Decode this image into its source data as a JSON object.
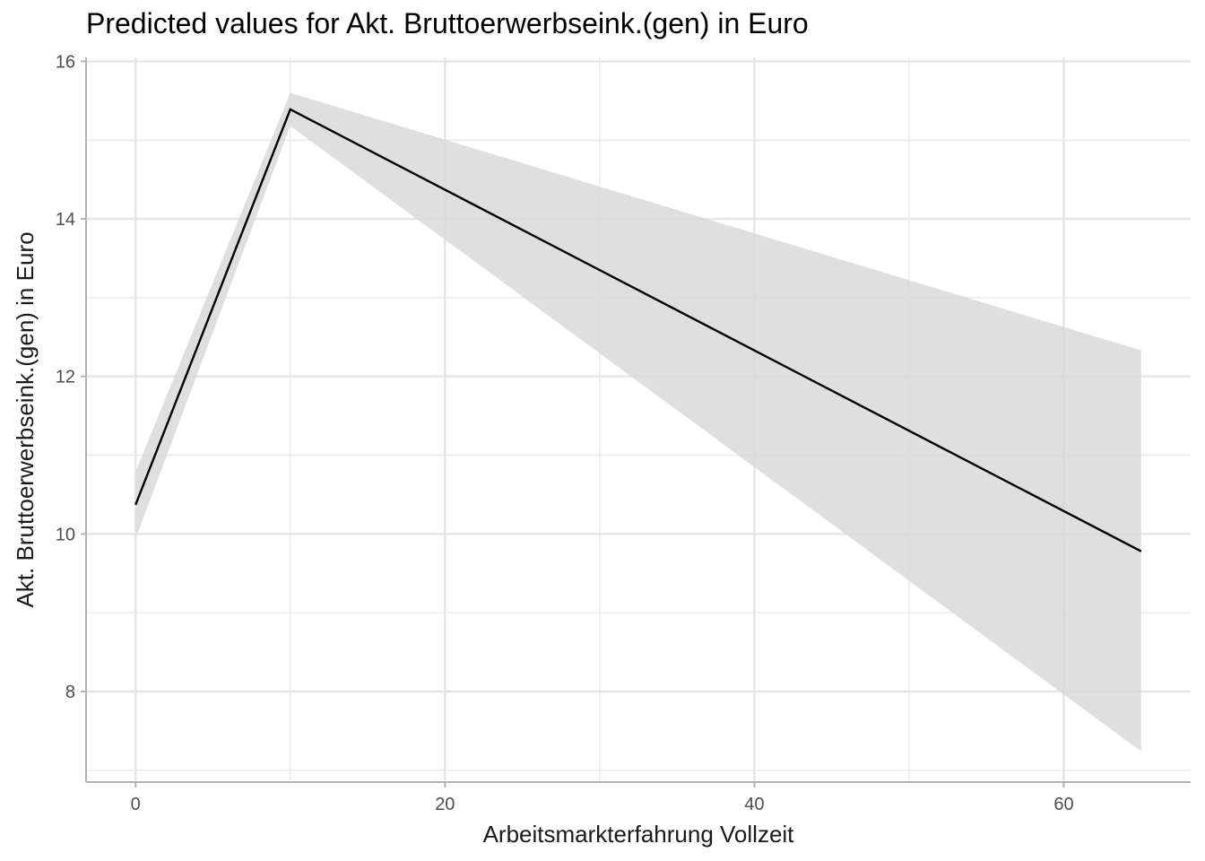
{
  "chart_data": {
    "type": "line",
    "title": "Predicted values for Akt. Bruttoerwerbseink.(gen) in Euro",
    "xlabel": "Arbeitsmarkterfahrung Vollzeit",
    "ylabel": "Akt. Bruttoerwerbseink.(gen) in Euro",
    "xlim": [
      -3.2,
      68.2
    ],
    "ylim": [
      6.85,
      16.05
    ],
    "x_ticks": [
      0,
      20,
      40,
      60
    ],
    "y_ticks": [
      8,
      10,
      12,
      14,
      16
    ],
    "x_tick_labels": [
      "0",
      "20",
      "40",
      "60"
    ],
    "y_tick_labels": [
      "8",
      "10",
      "12",
      "14",
      "16"
    ],
    "grid": true,
    "series": [
      {
        "x": [
          0,
          10,
          65
        ],
        "y": [
          10.37,
          15.39,
          9.78
        ],
        "ci_lower": [
          9.94,
          15.18,
          7.24
        ],
        "ci_upper": [
          10.79,
          15.6,
          12.33
        ]
      }
    ],
    "colors": {
      "line": "#000000",
      "ribbon": "#d9d9d9",
      "grid": "#e5e5e5",
      "axis": "#b3b3b3"
    }
  }
}
